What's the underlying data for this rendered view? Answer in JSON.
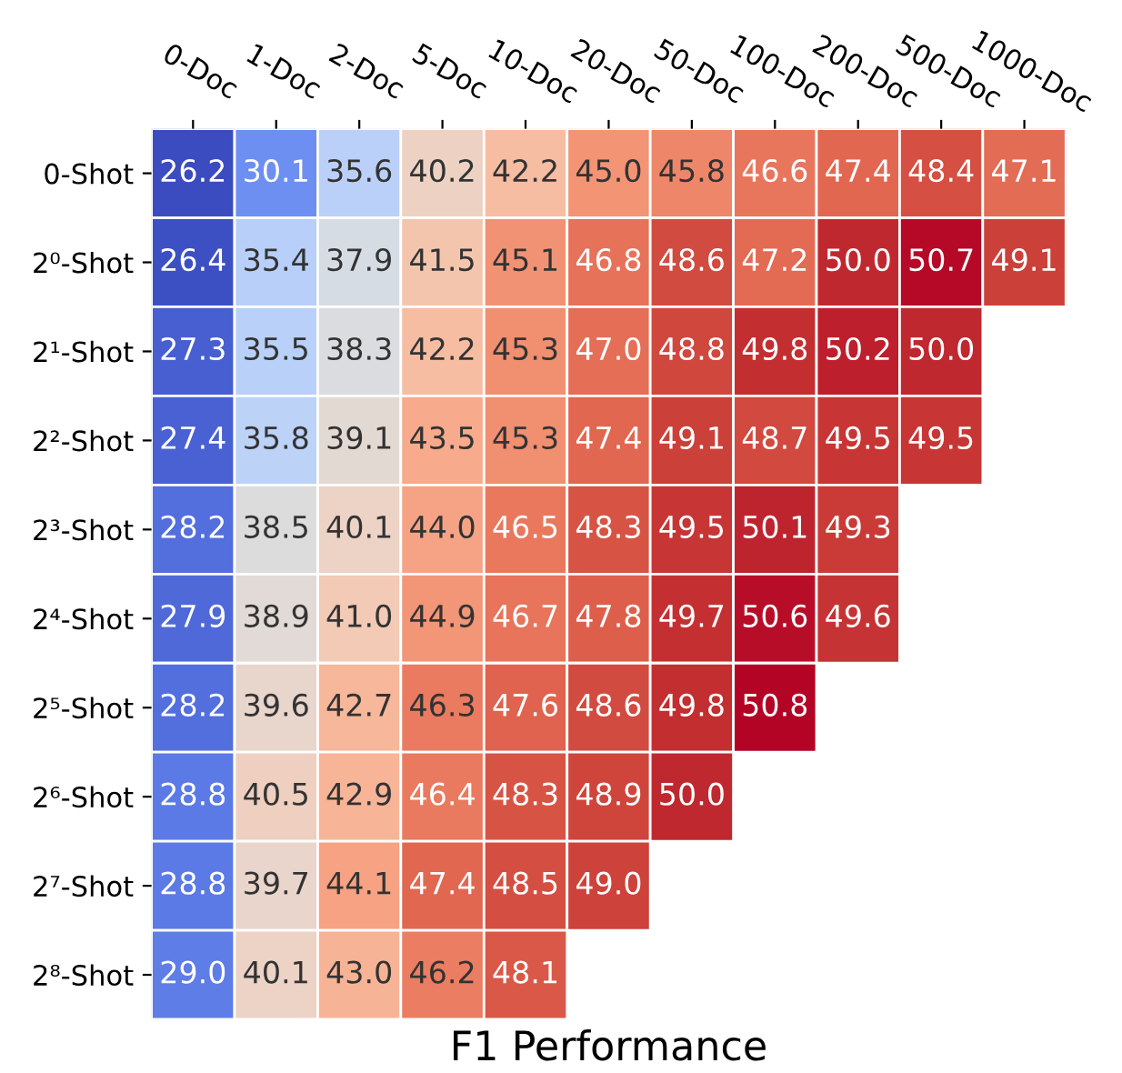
{
  "chart_data": {
    "type": "heatmap",
    "xlabel": "F1 Performance",
    "categories": [
      "0-Doc",
      "1-Doc",
      "2-Doc",
      "5-Doc",
      "10-Doc",
      "20-Doc",
      "50-Doc",
      "100-Doc",
      "200-Doc",
      "500-Doc",
      "1000-Doc"
    ],
    "y_categories": [
      "0-Shot",
      "2⁰-Shot",
      "2¹-Shot",
      "2²-Shot",
      "2³-Shot",
      "2⁴-Shot",
      "2⁵-Shot",
      "2⁶-Shot",
      "2⁷-Shot",
      "2⁸-Shot"
    ],
    "cells": [
      [
        26.2,
        30.1,
        35.6,
        40.2,
        42.2,
        45.0,
        45.8,
        46.6,
        47.4,
        48.4,
        47.1
      ],
      [
        26.4,
        35.4,
        37.9,
        41.5,
        45.1,
        46.8,
        48.6,
        47.2,
        50.0,
        50.7,
        49.1
      ],
      [
        27.3,
        35.5,
        38.3,
        42.2,
        45.3,
        47.0,
        48.8,
        49.8,
        50.2,
        50.0,
        null
      ],
      [
        27.4,
        35.8,
        39.1,
        43.5,
        45.3,
        47.4,
        49.1,
        48.7,
        49.5,
        49.5,
        null
      ],
      [
        28.2,
        38.5,
        40.1,
        44.0,
        46.5,
        48.3,
        49.5,
        50.1,
        49.3,
        null,
        null
      ],
      [
        27.9,
        38.9,
        41.0,
        44.9,
        46.7,
        47.8,
        49.7,
        50.6,
        49.6,
        null,
        null
      ],
      [
        28.2,
        39.6,
        42.7,
        46.3,
        47.6,
        48.6,
        49.8,
        50.8,
        null,
        null,
        null
      ],
      [
        28.8,
        40.5,
        42.9,
        46.4,
        48.3,
        48.9,
        50.0,
        null,
        null,
        null,
        null
      ],
      [
        28.8,
        39.7,
        44.1,
        47.4,
        48.5,
        49.0,
        null,
        null,
        null,
        null,
        null
      ],
      [
        29.0,
        40.1,
        43.0,
        46.2,
        48.1,
        null,
        null,
        null,
        null,
        null,
        null
      ]
    ],
    "cell_labels": [
      [
        "26.2",
        "30.1",
        "35.6",
        "40.2",
        "42.2",
        "45.0",
        "45.8",
        "46.6",
        "47.4",
        "48.4",
        "47.1"
      ],
      [
        "26.4",
        "35.4",
        "37.9",
        "41.5",
        "45.1",
        "46.8",
        "48.6",
        "47.2",
        "50.0",
        "50.7",
        "49.1"
      ],
      [
        "27.3",
        "35.5",
        "38.3",
        "42.2",
        "45.3",
        "47.0",
        "48.8",
        "49.8",
        "50.2",
        "50.0",
        null
      ],
      [
        "27.4",
        "35.8",
        "39.1",
        "43.5",
        "45.3",
        "47.4",
        "49.1",
        "48.7",
        "49.5",
        "49.5",
        null
      ],
      [
        "28.2",
        "38.5",
        "40.1",
        "44.0",
        "46.5",
        "48.3",
        "49.5",
        "50.1",
        "49.3",
        null,
        null
      ],
      [
        "27.9",
        "38.9",
        "41.0",
        "44.9",
        "46.7",
        "47.8",
        "49.7",
        "50.6",
        "49.6",
        null,
        null
      ],
      [
        "28.2",
        "39.6",
        "42.7",
        "46.3",
        "47.6",
        "48.6",
        "49.8",
        "50.8",
        null,
        null,
        null
      ],
      [
        "28.8",
        "40.5",
        "42.9",
        "46.4",
        "48.3",
        "48.9",
        "50.0",
        null,
        null,
        null,
        null
      ],
      [
        "28.8",
        "39.7",
        "44.1",
        "47.4",
        "48.5",
        "49.0",
        null,
        null,
        null,
        null,
        null
      ],
      [
        "29.0",
        "40.1",
        "43.0",
        "46.2",
        "48.1",
        null,
        null,
        null,
        null,
        null,
        null
      ]
    ]
  }
}
